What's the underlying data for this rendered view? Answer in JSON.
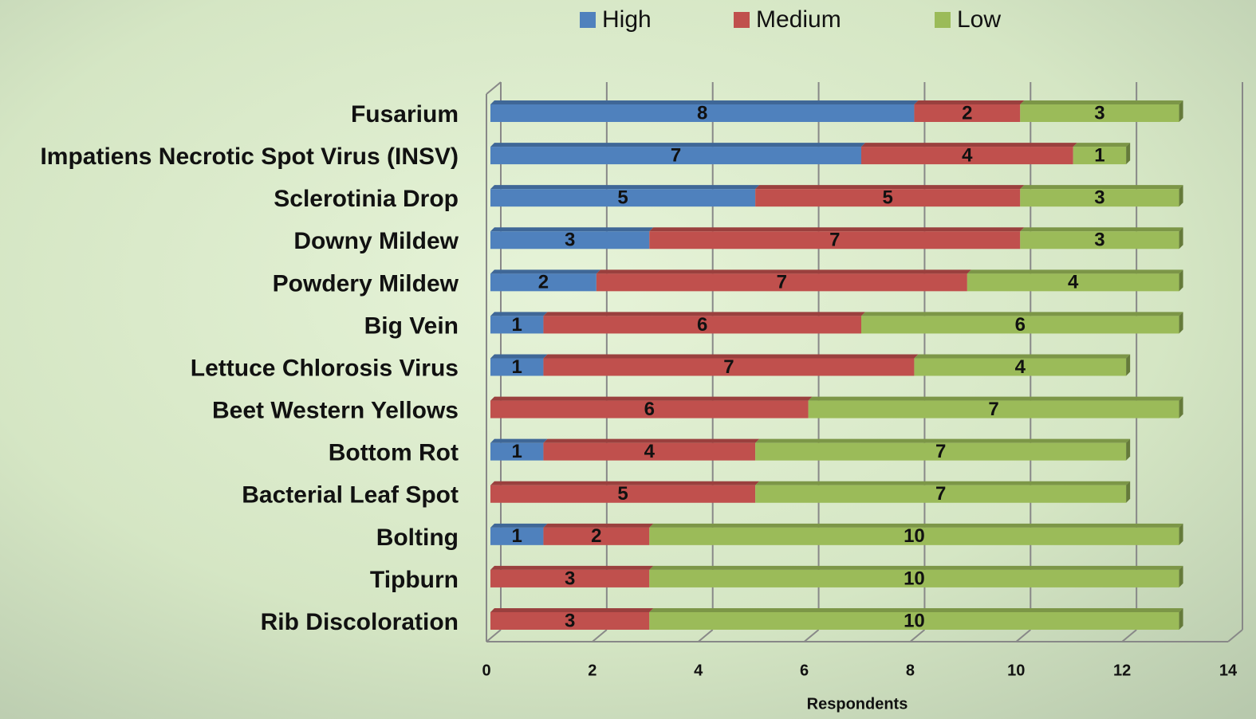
{
  "chart_data": {
    "type": "stacked-bar-horizontal",
    "categories": [
      "Fusarium",
      "Impatiens Necrotic Spot Virus (INSV)",
      "Sclerotinia Drop",
      "Downy Mildew",
      "Powdery Mildew",
      "Big Vein",
      "Lettuce Chlorosis Virus",
      "Beet Western Yellows",
      "Bottom Rot",
      "Bacterial Leaf Spot",
      "Bolting",
      "Tipburn",
      "Rib Discoloration"
    ],
    "series": [
      {
        "name": "High",
        "color": "#4f81bd",
        "values": [
          8,
          7,
          5,
          3,
          2,
          1,
          1,
          null,
          1,
          null,
          1,
          null,
          null
        ]
      },
      {
        "name": "Medium",
        "color": "#c0504d",
        "values": [
          2,
          4,
          5,
          7,
          7,
          6,
          7,
          6,
          4,
          5,
          2,
          3,
          3
        ]
      },
      {
        "name": "Low",
        "color": "#9bbb59",
        "values": [
          3,
          1,
          3,
          3,
          4,
          6,
          4,
          7,
          7,
          7,
          10,
          10,
          10
        ]
      }
    ],
    "xlabel": "Respondents",
    "xlim": [
      0,
      14
    ],
    "xticks": [
      0,
      2,
      4,
      6,
      8,
      10,
      12,
      14
    ],
    "grid": true,
    "legend": "top"
  }
}
